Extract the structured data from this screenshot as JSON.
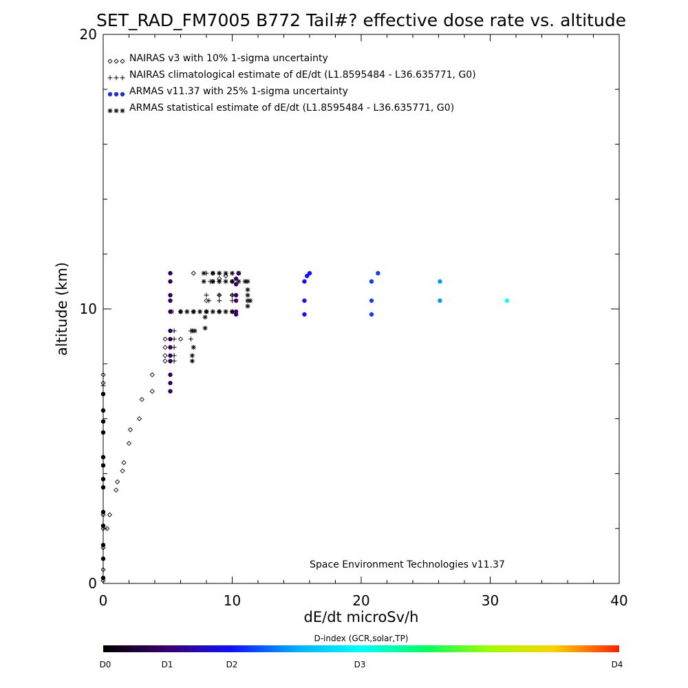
{
  "chart_data": {
    "type": "scatter",
    "title": "SET_RAD_FM7005  B772 Tail#? effective dose rate vs. altitude",
    "xlabel": "dE/dt microSv/h",
    "ylabel": "altitude (km)",
    "xlim": [
      0,
      40
    ],
    "ylim": [
      0,
      20
    ],
    "x_ticks": [
      "0",
      "10",
      "20",
      "30",
      "40"
    ],
    "y_ticks": [
      "0",
      "10",
      "20"
    ],
    "credit": "Space Environment Technologies v11.37",
    "legend_position": "top-left",
    "legend": [
      {
        "marker": "◇◇◇",
        "label": "NAIRAS v3 with 10% 1-sigma uncertainty"
      },
      {
        "marker": "+++",
        "label": "NAIRAS climatological estimate of dE/dt (L1.8595484 - L36.635771, G0)"
      },
      {
        "marker": "●●●",
        "label": "ARMAS v11.37 with 25% 1-sigma uncertainty"
      },
      {
        "marker": "✱✱✱",
        "label": "ARMAS statistical estimate of dE/dt (L1.8595484 - L36.635771, G0)"
      }
    ],
    "colorbar": {
      "title": "D-index (GCR,solar,TP)",
      "labels": [
        {
          "text": "D0",
          "value": 0
        },
        {
          "text": "D1",
          "value": 0.5
        },
        {
          "text": "D2",
          "value": 1.0
        },
        {
          "text": "D3",
          "value": 2.0
        },
        {
          "text": "D4",
          "value": 4.0
        }
      ]
    },
    "series": [
      {
        "marker": "diamond",
        "points": [
          [
            0,
            0.1
          ],
          [
            0,
            0.5
          ],
          [
            0,
            1.3
          ],
          [
            0,
            2.0
          ],
          [
            0,
            2.5
          ],
          [
            0.3,
            2.0
          ],
          [
            0.5,
            2.5
          ],
          [
            1.0,
            3.4
          ],
          [
            1.1,
            3.7
          ],
          [
            1.5,
            4.1
          ],
          [
            1.6,
            4.4
          ],
          [
            2.0,
            5.1
          ],
          [
            2.1,
            5.6
          ],
          [
            2.8,
            6.0
          ],
          [
            3.0,
            6.7
          ],
          [
            3.8,
            7.0
          ],
          [
            3.8,
            7.6
          ],
          [
            0,
            7.6
          ],
          [
            0,
            7.3
          ],
          [
            4.8,
            8.1
          ],
          [
            4.8,
            8.3
          ],
          [
            4.8,
            8.6
          ],
          [
            4.8,
            8.9
          ],
          [
            6.0,
            8.9
          ],
          [
            6.0,
            9.9
          ],
          [
            7.0,
            9.9
          ],
          [
            8.0,
            9.9
          ],
          [
            9.0,
            9.9
          ],
          [
            10.0,
            9.9
          ],
          [
            8.0,
            10.3
          ],
          [
            9.0,
            10.5
          ],
          [
            10.0,
            10.5
          ],
          [
            8.5,
            11.0
          ],
          [
            10.0,
            11.0
          ],
          [
            7.0,
            11.3
          ],
          [
            8.5,
            11.3
          ],
          [
            9.0,
            11.1
          ],
          [
            9.5,
            11.2
          ],
          [
            10.5,
            11.3
          ]
        ]
      },
      {
        "marker": "plus",
        "points": [
          [
            0,
            7.2
          ],
          [
            5.5,
            8.1
          ],
          [
            5.5,
            8.3
          ],
          [
            5.5,
            8.6
          ],
          [
            5.5,
            8.9
          ],
          [
            5.5,
            9.2
          ],
          [
            6.8,
            8.9
          ],
          [
            6.8,
            9.2
          ],
          [
            6.0,
            9.9
          ],
          [
            6.5,
            9.9
          ],
          [
            7.5,
            9.9
          ],
          [
            8.5,
            9.9
          ],
          [
            9.5,
            9.9
          ],
          [
            8.2,
            10.3
          ],
          [
            9.0,
            10.3
          ],
          [
            10.0,
            10.3
          ],
          [
            8.0,
            10.5
          ],
          [
            9.0,
            10.5
          ],
          [
            10.0,
            10.5
          ],
          [
            8.3,
            11.0
          ],
          [
            9.0,
            11.0
          ],
          [
            10.0,
            11.0
          ],
          [
            8.0,
            11.3
          ],
          [
            9.0,
            11.3
          ],
          [
            10.0,
            11.3
          ]
        ]
      },
      {
        "marker": "asterisk",
        "points": [
          [
            6.9,
            8.1
          ],
          [
            6.9,
            8.3
          ],
          [
            7.0,
            8.6
          ],
          [
            6.9,
            9.2
          ],
          [
            7.1,
            9.2
          ],
          [
            7.9,
            9.3
          ],
          [
            5.3,
            9.9
          ],
          [
            6.0,
            9.9
          ],
          [
            6.5,
            9.9
          ],
          [
            7.0,
            9.9
          ],
          [
            7.5,
            9.9
          ],
          [
            8.0,
            9.9
          ],
          [
            8.5,
            9.9
          ],
          [
            9.0,
            9.9
          ],
          [
            9.5,
            9.9
          ],
          [
            10.0,
            9.9
          ],
          [
            7.9,
            9.7
          ],
          [
            11.2,
            10.1
          ],
          [
            11.2,
            10.3
          ],
          [
            11.4,
            10.3
          ],
          [
            11.2,
            10.5
          ],
          [
            11.2,
            10.7
          ],
          [
            11.2,
            11.0
          ],
          [
            7.8,
            11.0
          ],
          [
            8.5,
            11.0
          ],
          [
            9.0,
            11.0
          ],
          [
            9.5,
            11.0
          ],
          [
            10.0,
            11.0
          ],
          [
            10.5,
            11.0
          ],
          [
            11.0,
            11.0
          ],
          [
            7.8,
            11.3
          ],
          [
            8.5,
            11.3
          ],
          [
            9.0,
            11.3
          ],
          [
            9.5,
            11.3
          ],
          [
            10.0,
            11.3
          ],
          [
            10.5,
            11.3
          ]
        ]
      },
      {
        "marker": "dot",
        "points": [
          {
            "x": 0,
            "y": 0.2,
            "d": 0.05
          },
          {
            "x": 0,
            "y": 0.9,
            "d": 0.05
          },
          {
            "x": 0,
            "y": 1.4,
            "d": 0.05
          },
          {
            "x": 0,
            "y": 2.1,
            "d": 0.05
          },
          {
            "x": 0,
            "y": 2.6,
            "d": 0.05
          },
          {
            "x": 0,
            "y": 3.5,
            "d": 0.05
          },
          {
            "x": 0,
            "y": 3.8,
            "d": 0.05
          },
          {
            "x": 0,
            "y": 4.3,
            "d": 0.05
          },
          {
            "x": 0,
            "y": 4.6,
            "d": 0.05
          },
          {
            "x": 0,
            "y": 5.5,
            "d": 0.05
          },
          {
            "x": 0,
            "y": 5.9,
            "d": 0.05
          },
          {
            "x": 0,
            "y": 6.3,
            "d": 0.05
          },
          {
            "x": 0,
            "y": 6.9,
            "d": 0.05
          },
          {
            "x": 5.2,
            "y": 7.0,
            "d": 0.4
          },
          {
            "x": 5.2,
            "y": 7.3,
            "d": 0.4
          },
          {
            "x": 5.2,
            "y": 7.6,
            "d": 0.4
          },
          {
            "x": 5.2,
            "y": 8.1,
            "d": 0.4
          },
          {
            "x": 5.2,
            "y": 8.3,
            "d": 0.4
          },
          {
            "x": 5.2,
            "y": 8.6,
            "d": 0.4
          },
          {
            "x": 5.2,
            "y": 8.9,
            "d": 0.4
          },
          {
            "x": 5.2,
            "y": 9.2,
            "d": 0.4
          },
          {
            "x": 5.2,
            "y": 9.9,
            "d": 0.4
          },
          {
            "x": 5.2,
            "y": 10.3,
            "d": 0.4
          },
          {
            "x": 5.2,
            "y": 10.5,
            "d": 0.4
          },
          {
            "x": 5.2,
            "y": 11.0,
            "d": 0.4
          },
          {
            "x": 5.2,
            "y": 11.3,
            "d": 0.4
          },
          {
            "x": 10.3,
            "y": 9.8,
            "d": 0.5
          },
          {
            "x": 10.3,
            "y": 9.9,
            "d": 0.5
          },
          {
            "x": 10.3,
            "y": 10.3,
            "d": 0.5
          },
          {
            "x": 10.3,
            "y": 10.5,
            "d": 0.5
          },
          {
            "x": 10.3,
            "y": 10.9,
            "d": 0.5
          },
          {
            "x": 10.3,
            "y": 11.1,
            "d": 0.5
          },
          {
            "x": 10.5,
            "y": 11.3,
            "d": 0.5
          },
          {
            "x": 15.6,
            "y": 9.8,
            "d": 1.0
          },
          {
            "x": 15.6,
            "y": 10.3,
            "d": 1.0
          },
          {
            "x": 15.6,
            "y": 11.0,
            "d": 1.0
          },
          {
            "x": 15.8,
            "y": 11.2,
            "d": 1.0
          },
          {
            "x": 16.0,
            "y": 11.3,
            "d": 1.0
          },
          {
            "x": 20.8,
            "y": 9.8,
            "d": 1.2
          },
          {
            "x": 20.8,
            "y": 10.3,
            "d": 1.2
          },
          {
            "x": 20.8,
            "y": 11.0,
            "d": 1.2
          },
          {
            "x": 21.3,
            "y": 11.3,
            "d": 1.2
          },
          {
            "x": 26.1,
            "y": 10.3,
            "d": 1.6
          },
          {
            "x": 26.1,
            "y": 11.0,
            "d": 1.6
          },
          {
            "x": 31.3,
            "y": 10.3,
            "d": 2.0
          }
        ]
      }
    ]
  }
}
